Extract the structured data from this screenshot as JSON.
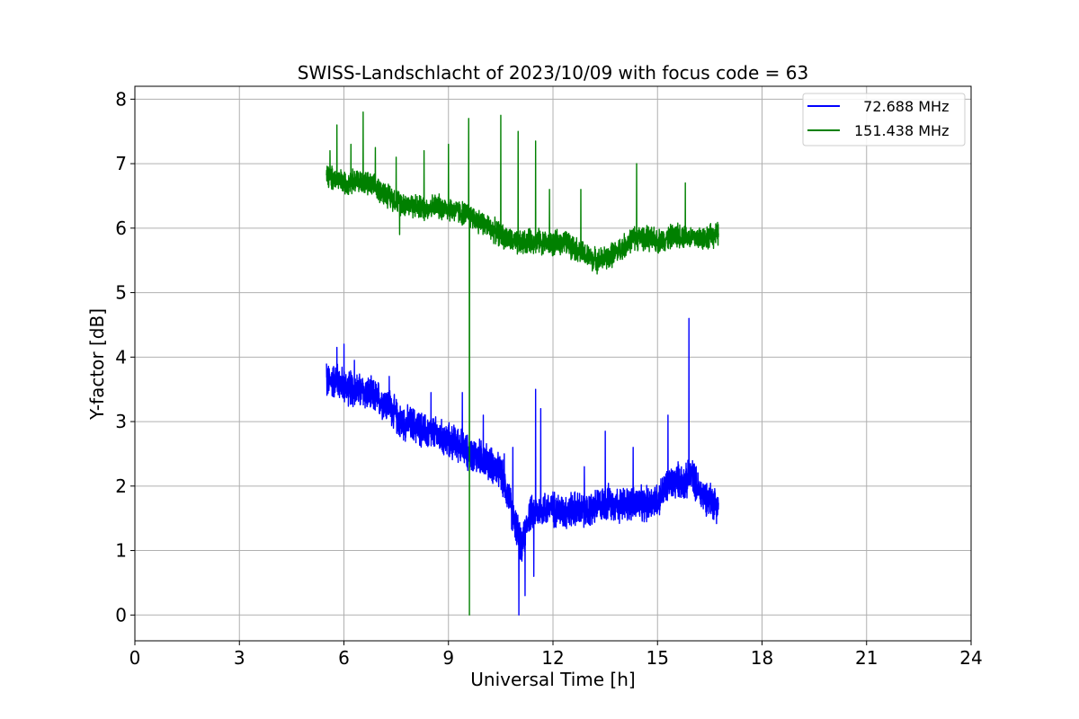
{
  "chart_data": {
    "type": "line",
    "title": "SWISS-Landschlacht of 2023/10/09 with focus code = 63",
    "xlabel": "Universal Time [h]",
    "ylabel": "Y-factor [dB]",
    "xlim": [
      0,
      24
    ],
    "ylim": [
      -0.4,
      8.2
    ],
    "xticks": [
      0,
      3,
      6,
      9,
      12,
      15,
      18,
      21,
      24
    ],
    "xtick_labels": [
      "0",
      "3",
      "6",
      "9",
      "12",
      "15",
      "18",
      "21",
      "24"
    ],
    "yticks": [
      0,
      1,
      2,
      3,
      4,
      5,
      6,
      7,
      8
    ],
    "ytick_labels": [
      "0",
      "1",
      "2",
      "3",
      "4",
      "5",
      "6",
      "7",
      "8"
    ],
    "grid": true,
    "legend_position": "top-right",
    "series": [
      {
        "name": "  72.688 MHz",
        "color": "#0000ff",
        "x": [
          5.5,
          5.8,
          6.0,
          6.3,
          6.6,
          7.0,
          7.3,
          7.6,
          8.0,
          8.3,
          8.6,
          9.0,
          9.3,
          9.6,
          9.9,
          10.2,
          10.5,
          10.75,
          10.85,
          11.0,
          11.1,
          11.3,
          11.5,
          11.7,
          12.0,
          12.3,
          12.6,
          13.0,
          13.3,
          13.6,
          14.0,
          14.3,
          14.6,
          15.0,
          15.3,
          15.6,
          15.8,
          16.0,
          16.2,
          16.5,
          16.75
        ],
        "y": [
          3.6,
          3.65,
          3.55,
          3.5,
          3.45,
          3.35,
          3.25,
          3.0,
          2.95,
          2.85,
          2.8,
          2.7,
          2.65,
          2.5,
          2.45,
          2.35,
          2.2,
          1.8,
          1.5,
          1.3,
          1.0,
          1.55,
          1.6,
          1.65,
          1.65,
          1.6,
          1.65,
          1.6,
          1.7,
          1.75,
          1.7,
          1.75,
          1.7,
          1.8,
          2.0,
          2.1,
          2.05,
          2.2,
          1.9,
          1.8,
          1.7
        ],
        "spikes": [
          {
            "x": 5.5,
            "y": 3.9
          },
          {
            "x": 5.8,
            "y": 4.15
          },
          {
            "x": 6.0,
            "y": 4.2
          },
          {
            "x": 6.3,
            "y": 3.95
          },
          {
            "x": 7.3,
            "y": 3.7
          },
          {
            "x": 8.5,
            "y": 3.45
          },
          {
            "x": 9.4,
            "y": 3.45
          },
          {
            "x": 10.0,
            "y": 3.1
          },
          {
            "x": 10.6,
            "y": 2.5
          },
          {
            "x": 10.85,
            "y": 2.6
          },
          {
            "x": 11.02,
            "y": 0.0
          },
          {
            "x": 11.2,
            "y": 0.3
          },
          {
            "x": 11.5,
            "y": 3.5
          },
          {
            "x": 11.65,
            "y": 3.2
          },
          {
            "x": 11.65,
            "y": 0.2
          },
          {
            "x": 11.45,
            "y": 0.6
          },
          {
            "x": 12.9,
            "y": 2.3
          },
          {
            "x": 13.5,
            "y": 2.85
          },
          {
            "x": 14.3,
            "y": 2.6
          },
          {
            "x": 15.3,
            "y": 3.1
          },
          {
            "x": 15.9,
            "y": 4.6
          }
        ]
      },
      {
        "name": "151.438 MHz",
        "color": "#008000",
        "x": [
          5.5,
          5.8,
          6.0,
          6.3,
          6.6,
          7.0,
          7.3,
          7.6,
          8.0,
          8.3,
          8.6,
          9.0,
          9.3,
          9.6,
          9.9,
          10.2,
          10.5,
          10.8,
          11.0,
          11.3,
          11.6,
          12.0,
          12.3,
          12.6,
          13.0,
          13.3,
          13.6,
          14.0,
          14.3,
          14.6,
          15.0,
          15.3,
          15.6,
          16.0,
          16.3,
          16.75
        ],
        "y": [
          6.8,
          6.75,
          6.7,
          6.75,
          6.7,
          6.6,
          6.5,
          6.4,
          6.35,
          6.3,
          6.35,
          6.3,
          6.25,
          6.2,
          6.1,
          6.0,
          5.9,
          5.8,
          5.75,
          5.8,
          5.8,
          5.75,
          5.8,
          5.7,
          5.55,
          5.5,
          5.55,
          5.7,
          5.85,
          5.85,
          5.8,
          5.85,
          5.9,
          5.85,
          5.85,
          5.9
        ],
        "spikes": [
          {
            "x": 5.6,
            "y": 7.2
          },
          {
            "x": 5.8,
            "y": 7.6
          },
          {
            "x": 6.2,
            "y": 7.3
          },
          {
            "x": 6.55,
            "y": 7.8
          },
          {
            "x": 6.9,
            "y": 7.25
          },
          {
            "x": 7.5,
            "y": 7.1
          },
          {
            "x": 8.3,
            "y": 7.2
          },
          {
            "x": 9.0,
            "y": 7.3
          },
          {
            "x": 9.58,
            "y": 7.7
          },
          {
            "x": 9.6,
            "y": 0.0
          },
          {
            "x": 10.5,
            "y": 7.75
          },
          {
            "x": 11.0,
            "y": 7.5
          },
          {
            "x": 11.5,
            "y": 7.35
          },
          {
            "x": 11.9,
            "y": 6.6
          },
          {
            "x": 12.8,
            "y": 6.6
          },
          {
            "x": 14.4,
            "y": 7.0
          },
          {
            "x": 15.8,
            "y": 6.7
          },
          {
            "x": 7.6,
            "y": 5.9
          }
        ]
      }
    ]
  }
}
